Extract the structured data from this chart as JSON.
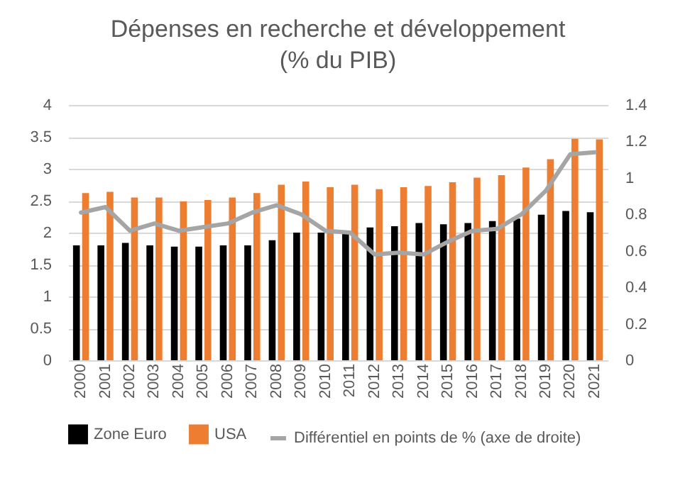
{
  "chart_data": {
    "type": "bar",
    "title": "Dépenses en recherche et développement (% du PIB)",
    "categories": [
      "2000",
      "2001",
      "2002",
      "2003",
      "2004",
      "2005",
      "2006",
      "2007",
      "2008",
      "2009",
      "2010",
      "2011",
      "2012",
      "2013",
      "2014",
      "2015",
      "2016",
      "2017",
      "2018",
      "2019",
      "2020",
      "2021"
    ],
    "series": [
      {
        "name": "Zone Euro",
        "color": "#000000",
        "values": [
          1.8,
          1.8,
          1.84,
          1.8,
          1.78,
          1.78,
          1.8,
          1.8,
          1.88,
          2.0,
          2.0,
          2.03,
          2.08,
          2.1,
          2.15,
          2.13,
          2.15,
          2.18,
          2.22,
          2.28,
          2.34,
          2.32
        ]
      },
      {
        "name": "USA",
        "color": "#ed7d31",
        "values": [
          2.62,
          2.64,
          2.55,
          2.55,
          2.49,
          2.51,
          2.55,
          2.62,
          2.75,
          2.8,
          2.71,
          2.75,
          2.68,
          2.71,
          2.73,
          2.79,
          2.86,
          2.9,
          3.02,
          3.15,
          3.47,
          3.46
        ]
      },
      {
        "name": "Différentiel en points de % (axe de droite)",
        "type": "line",
        "axis": "y2",
        "color": "#a5a5a5",
        "line_style": "solid",
        "marker": "none",
        "values": [
          0.81,
          0.84,
          0.71,
          0.75,
          0.71,
          0.73,
          0.75,
          0.81,
          0.85,
          0.8,
          0.71,
          0.7,
          0.58,
          0.59,
          0.58,
          0.65,
          0.71,
          0.72,
          0.8,
          0.93,
          1.13,
          1.14
        ]
      }
    ],
    "ylim": [
      0,
      4
    ],
    "yticks": [
      0,
      0.5,
      1,
      1.5,
      2,
      2.5,
      3,
      3.5,
      4
    ],
    "y2lim": [
      0,
      1.4
    ],
    "y2ticks": [
      0,
      0.2,
      0.4,
      0.6,
      0.8,
      1,
      1.2,
      1.4
    ],
    "grid": "y",
    "legend": "bottom"
  }
}
